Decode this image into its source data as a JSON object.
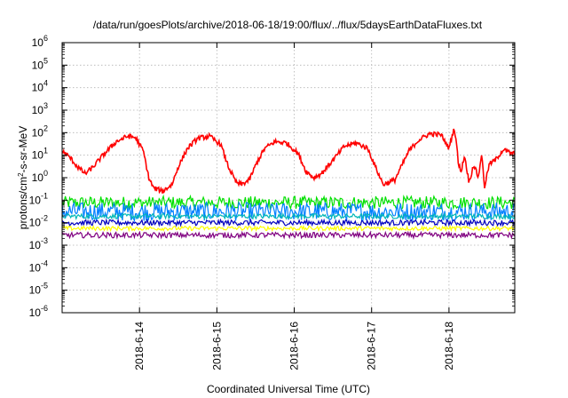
{
  "chart_data": {
    "type": "line",
    "title": "/data/run/goesPlots/archive/2018-06-18/19:00/flux/../flux/5daysEarthDataFluxes.txt",
    "xlabel": "Coordinated Universal Time (UTC)",
    "ylabel": "protons/cm2-s-sr-MeV",
    "ylabel_parts": {
      "pre": "protons/cm",
      "sup": "2",
      "post": "-s-sr-MeV"
    },
    "yscale": "log",
    "ylim": [
      1e-06,
      1000000
    ],
    "xlim_days": [
      13.0,
      18.85
    ],
    "grid": true,
    "y_ticks": [
      {
        "exp": -6,
        "base": "10",
        "sup": "-6"
      },
      {
        "exp": -5,
        "base": "10",
        "sup": "-5"
      },
      {
        "exp": -4,
        "base": "10",
        "sup": "-4"
      },
      {
        "exp": -3,
        "base": "10",
        "sup": "-3"
      },
      {
        "exp": -2,
        "base": "10",
        "sup": "-2"
      },
      {
        "exp": -1,
        "base": "10",
        "sup": "-1"
      },
      {
        "exp": 0,
        "base": "10",
        "sup": "0"
      },
      {
        "exp": 1,
        "base": "10",
        "sup": "1"
      },
      {
        "exp": 2,
        "base": "10",
        "sup": "2"
      },
      {
        "exp": 3,
        "base": "10",
        "sup": "3"
      },
      {
        "exp": 4,
        "base": "10",
        "sup": "4"
      },
      {
        "exp": 5,
        "base": "10",
        "sup": "5"
      },
      {
        "exp": 6,
        "base": "10",
        "sup": "6"
      }
    ],
    "x_ticks": [
      {
        "day": 14,
        "label": "2018-6-14"
      },
      {
        "day": 15,
        "label": "2018-6-15"
      },
      {
        "day": 16,
        "label": "2018-6-16"
      },
      {
        "day": 17,
        "label": "2018-6-17"
      },
      {
        "day": 18,
        "label": "2018-6-18"
      }
    ],
    "series": [
      {
        "color": "#ff0000",
        "style": "line",
        "x": [
          13.0,
          13.1,
          13.2,
          13.3,
          13.4,
          13.55,
          13.7,
          13.85,
          13.95,
          14.05,
          14.12,
          14.18,
          14.3,
          14.42,
          14.5,
          14.62,
          14.75,
          14.9,
          15.05,
          15.15,
          15.25,
          15.32,
          15.42,
          15.52,
          15.62,
          15.75,
          15.9,
          16.05,
          16.15,
          16.25,
          16.35,
          16.5,
          16.65,
          16.8,
          16.95,
          17.05,
          17.15,
          17.3,
          17.4,
          17.48,
          17.6,
          17.75,
          17.9,
          18.0,
          18.05,
          18.07,
          18.1,
          18.12,
          18.16,
          18.2,
          18.26,
          18.32,
          18.38,
          18.42,
          18.46,
          18.52,
          18.6,
          18.7,
          18.8,
          18.85
        ],
        "values": [
          15,
          8,
          3,
          1.5,
          3,
          12,
          40,
          70,
          60,
          15,
          1,
          0.35,
          0.25,
          0.5,
          3,
          20,
          55,
          70,
          30,
          3,
          0.6,
          0.5,
          0.8,
          5,
          20,
          40,
          35,
          12,
          2,
          1,
          1.5,
          6,
          25,
          35,
          20,
          3,
          0.5,
          0.8,
          4,
          15,
          45,
          90,
          80,
          20,
          100,
          150,
          30,
          4,
          2,
          10,
          0.6,
          4,
          1,
          12,
          0.4,
          4,
          6,
          18,
          12,
          12
        ]
      },
      {
        "color": "#00e000",
        "style": "band",
        "x": [
          13.0,
          18.85
        ],
        "low": [
          0.04,
          0.04
        ],
        "high": [
          0.15,
          0.15
        ]
      },
      {
        "color": "#0080ff",
        "style": "band",
        "x": [
          13.0,
          18.85
        ],
        "low": [
          0.012,
          0.012
        ],
        "high": [
          0.08,
          0.08
        ]
      },
      {
        "color": "#00b8b8",
        "style": "band",
        "x": [
          13.0,
          18.85
        ],
        "low": [
          0.015,
          0.015
        ],
        "high": [
          0.025,
          0.025
        ]
      },
      {
        "color": "#0000c0",
        "style": "noisy",
        "x": [
          13.0,
          18.85
        ],
        "values": [
          0.01,
          0.01
        ]
      },
      {
        "color": "#ffff00",
        "style": "band",
        "x": [
          13.0,
          18.85
        ],
        "low": [
          0.0045,
          0.0045
        ],
        "high": [
          0.007,
          0.007
        ]
      },
      {
        "color": "#800080",
        "style": "noisy",
        "x": [
          13.0,
          18.85
        ],
        "values": [
          0.0028,
          0.0028
        ]
      }
    ]
  }
}
